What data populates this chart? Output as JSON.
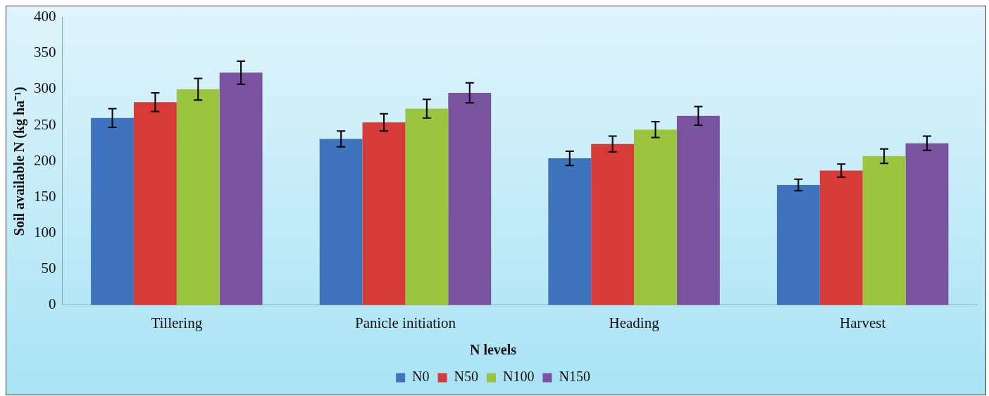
{
  "chart_data": {
    "type": "bar",
    "ylabel": "Soil available N (kg ha⁻¹)",
    "legend_title": "N levels",
    "categories": [
      "Tillering",
      "Panicle initiation",
      "Heading",
      "Harvest"
    ],
    "series": [
      {
        "name": "N0",
        "color": "#3f73bd",
        "values": [
          260,
          231,
          204,
          167
        ],
        "errors": [
          13,
          11,
          10,
          8
        ]
      },
      {
        "name": "N50",
        "color": "#d63b38",
        "values": [
          282,
          254,
          224,
          187
        ],
        "errors": [
          13,
          12,
          11,
          9
        ]
      },
      {
        "name": "N100",
        "color": "#9cc43e",
        "values": [
          300,
          273,
          244,
          207
        ],
        "errors": [
          15,
          13,
          11,
          10
        ]
      },
      {
        "name": "N150",
        "color": "#7a53a0",
        "values": [
          323,
          295,
          263,
          225
        ],
        "errors": [
          16,
          14,
          13,
          10
        ]
      }
    ],
    "ylim": [
      0,
      400
    ],
    "yticks": [
      0,
      50,
      100,
      150,
      200,
      250,
      300,
      350,
      400
    ],
    "grid": false,
    "legend": "bottom"
  }
}
